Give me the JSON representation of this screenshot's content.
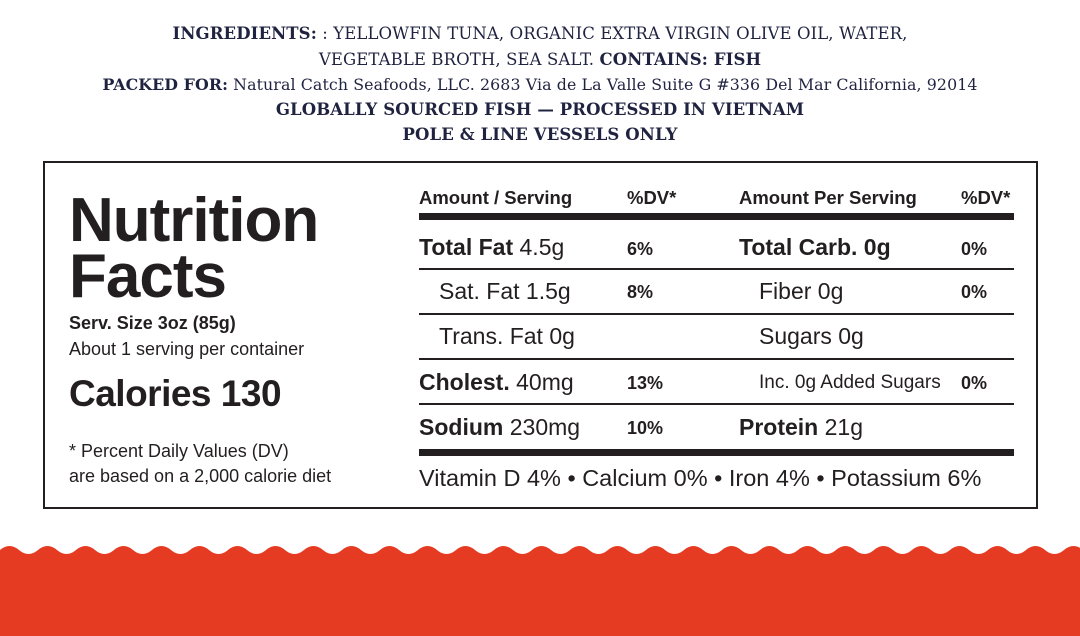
{
  "label": {
    "ingredients_label": "INGREDIENTS:",
    "ingredients_text_1": ": YELLOWFIN TUNA, ORGANIC EXTRA VIRGIN OLIVE OIL, WATER,",
    "ingredients_text_2": "VEGETABLE BROTH, SEA SALT.",
    "contains": "CONTAINS: FISH",
    "packed_label": "PACKED FOR:",
    "packed_text": "Natural Catch Seafoods, LLC. 2683 Via de La Valle Suite G #336 Del Mar California, 92014",
    "sourcing": "GLOBALLY SOURCED FISH — PROCESSED IN VIETNAM",
    "vessels": "POLE & LINE VESSELS ONLY"
  },
  "nutrition": {
    "title_1": "Nutrition",
    "title_2": "Facts",
    "serving_size": "Serv. Size 3oz (85g)",
    "servings_per_container": "About 1 serving per container",
    "calories": "Calories 130",
    "footnote_1": "* Percent Daily Values (DV)",
    "footnote_2": "are based on a 2,000 calorie diet",
    "header_left": "Amount / Serving",
    "header_left_dv": "%DV*",
    "header_right": "Amount Per Serving",
    "header_right_dv": "%DV*",
    "total_fat": {
      "name": "Total Fat",
      "amount": "4.5g",
      "dv": "6%"
    },
    "sat_fat": {
      "name": "Sat. Fat 1.5g",
      "dv": "8%"
    },
    "trans_fat": {
      "name": "Trans. Fat 0g"
    },
    "cholesterol": {
      "name": "Cholest.",
      "amount": "40mg",
      "dv": "13%"
    },
    "sodium": {
      "name": "Sodium",
      "amount": "230mg",
      "dv": "10%"
    },
    "total_carb": {
      "name": "Total Carb. 0g",
      "dv": "0%"
    },
    "fiber": {
      "name": "Fiber 0g",
      "dv": "0%"
    },
    "sugars": {
      "name": "Sugars 0g"
    },
    "added_sugars": {
      "name": "Inc. 0g Added Sugars",
      "dv": "0%"
    },
    "protein": {
      "name": "Protein",
      "amount": "21g"
    },
    "vitamins": "Vitamin D 4% • Calcium 0% • Iron 4% • Potassium 6%"
  },
  "colors": {
    "text_dark": "#231f20",
    "text_navy": "#1f2340",
    "wave_red": "#e63b23"
  }
}
